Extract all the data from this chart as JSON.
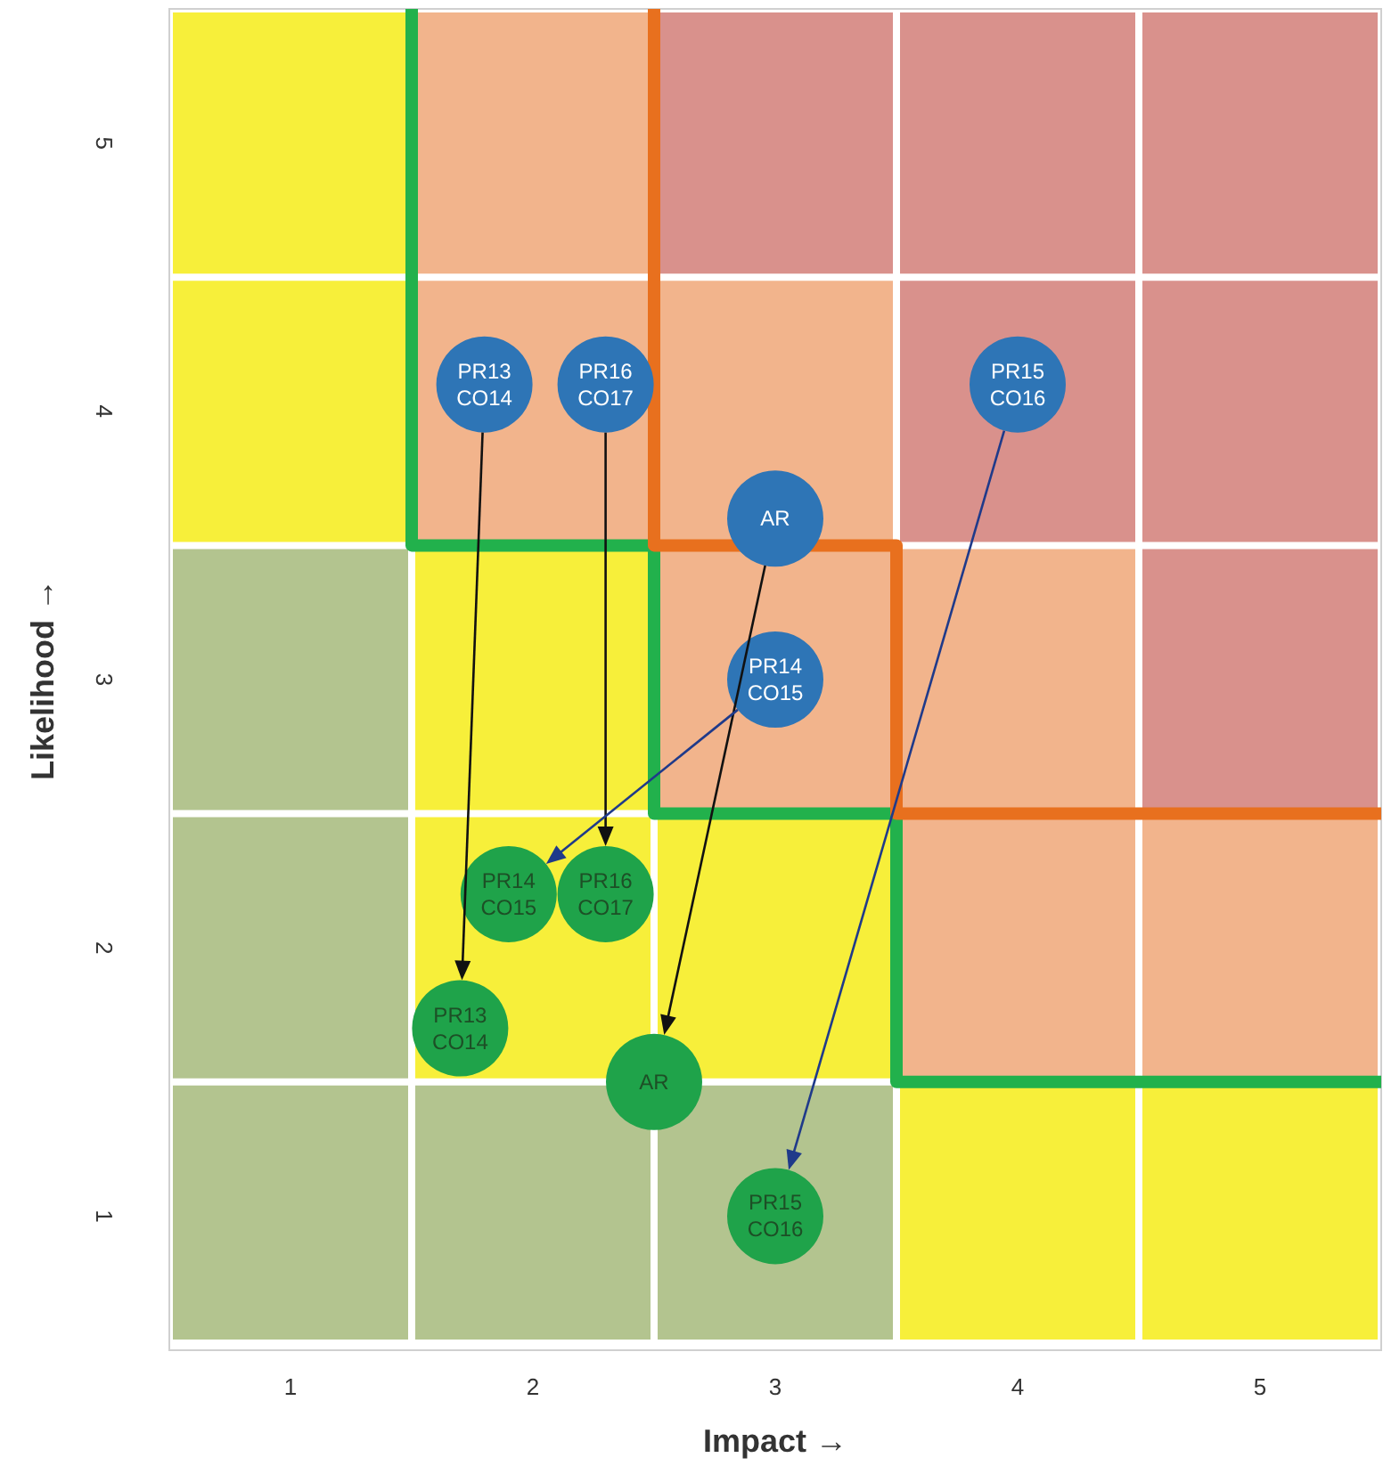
{
  "chart_data": {
    "type": "scatter",
    "xlabel": "Impact →",
    "ylabel": "Likelihood →",
    "xlim": [
      0.5,
      5.5
    ],
    "ylim": [
      0.5,
      5.5
    ],
    "xticks": [
      1,
      2,
      3,
      4,
      5
    ],
    "yticks": [
      1,
      2,
      3,
      4,
      5
    ],
    "marker": "circle",
    "series": [
      {
        "type": "line",
        "marker": "none",
        "color": "#22b14c",
        "x": [
          1.5,
          1.5,
          2.5,
          2.5,
          3.5,
          3.5,
          5.5
        ],
        "values": [
          5.5,
          3.5,
          3.5,
          2.5,
          2.5,
          1.5,
          1.5
        ]
      },
      {
        "type": "line",
        "marker": "none",
        "color": "#e8701e",
        "x": [
          2.5,
          2.5,
          3.5,
          3.5,
          5.5
        ],
        "values": [
          5.5,
          3.5,
          3.5,
          2.5,
          2.5
        ]
      },
      {
        "color": "#2e75b6",
        "x": [
          1.8,
          2.3,
          3.0,
          3.0,
          4.0
        ],
        "values": [
          4.1,
          4.1,
          3.6,
          3.0,
          4.1
        ],
        "value_labels": [
          "PR13\nCO14",
          "PR16\nCO17",
          "AR",
          "PR14\nCO15",
          "PR15\nCO16"
        ]
      },
      {
        "color": "#1fa34a",
        "x": [
          1.7,
          2.3,
          2.5,
          1.9,
          3.0
        ],
        "values": [
          1.7,
          2.2,
          1.5,
          2.2,
          1.0
        ],
        "value_labels": [
          "PR13\nCO14",
          "PR16\nCO17",
          "AR",
          "PR14\nCO15",
          "PR15\nCO16"
        ]
      }
    ]
  }
}
